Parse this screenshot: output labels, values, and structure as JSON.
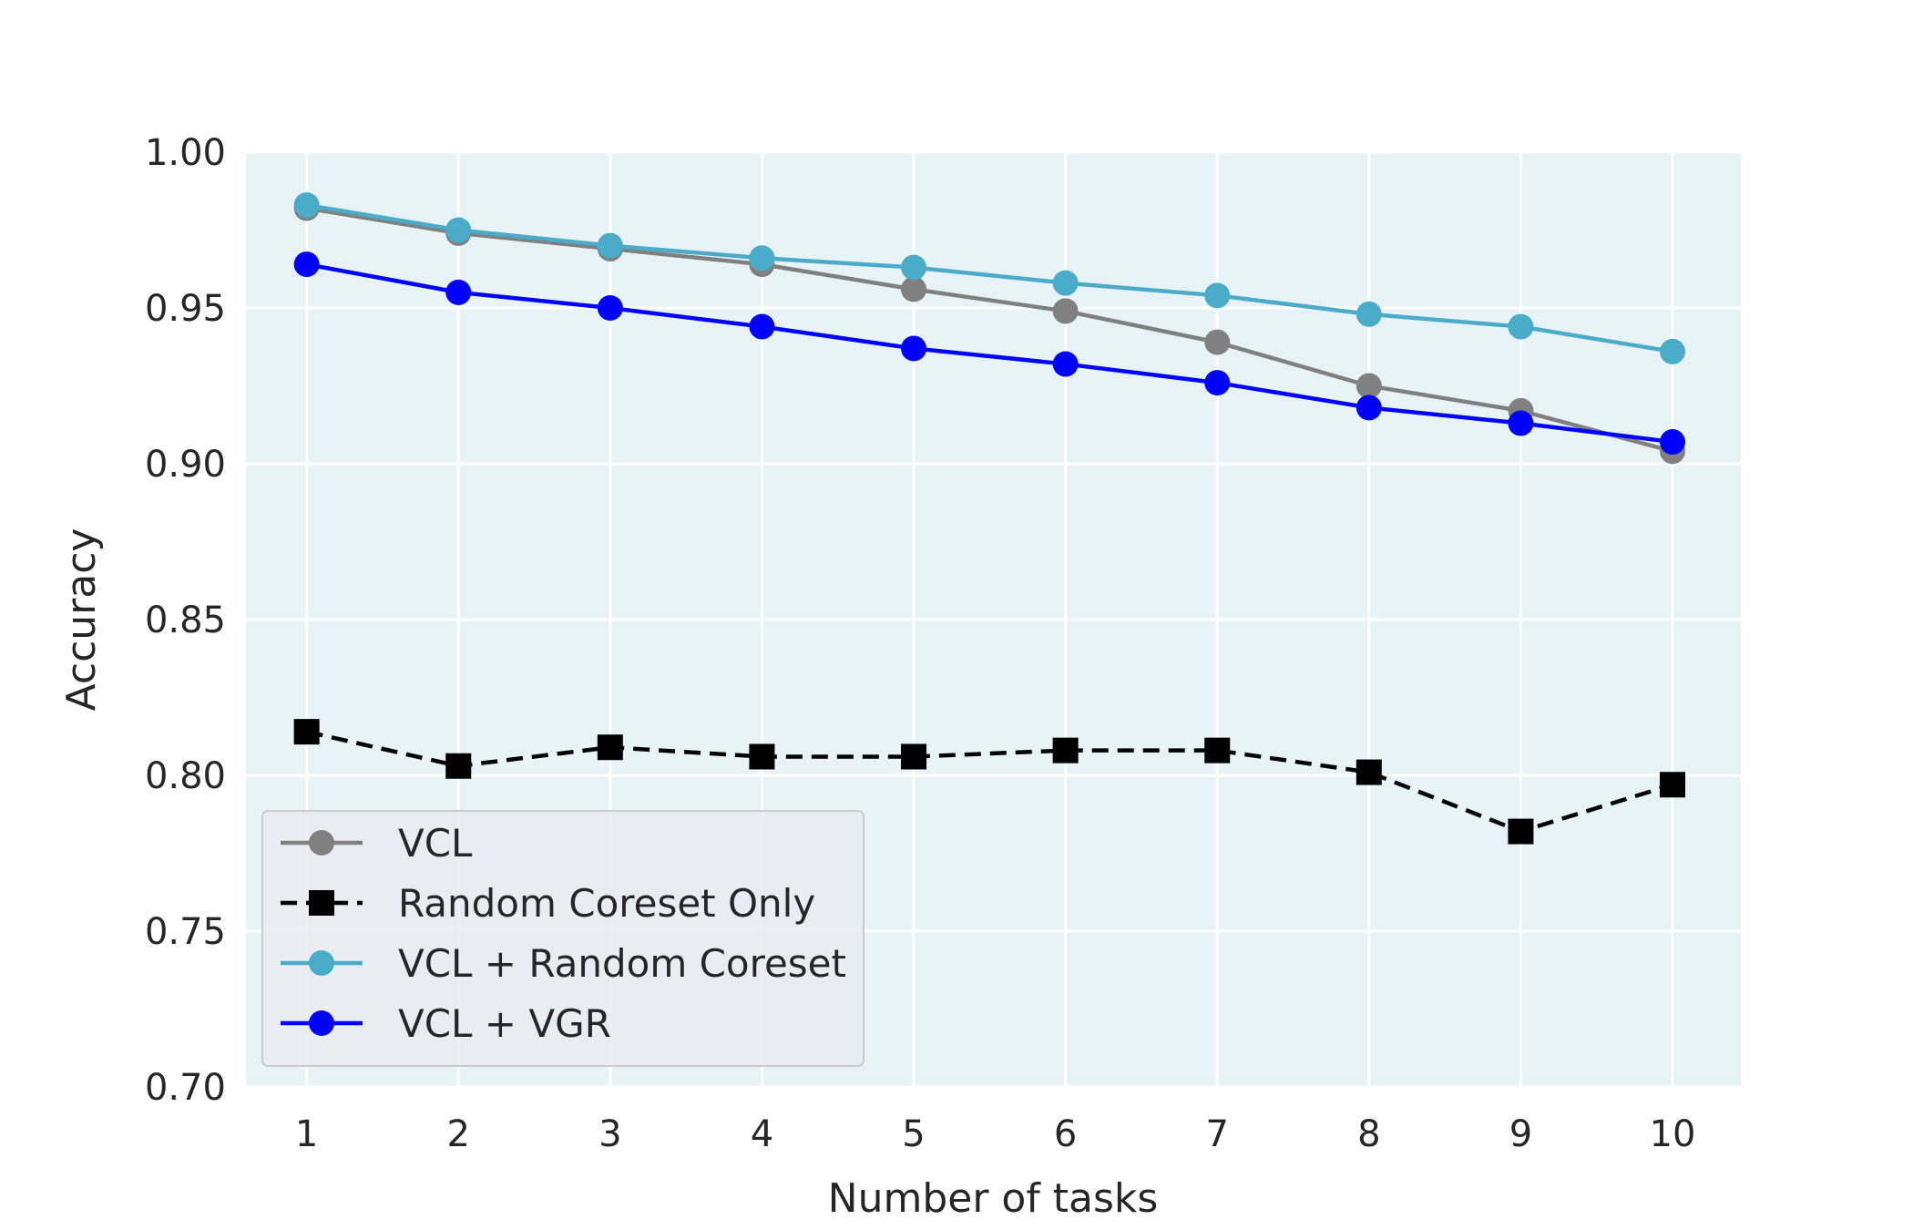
{
  "chart_data": {
    "type": "line",
    "title": "",
    "xlabel": "Number of tasks",
    "ylabel": "Accuracy",
    "x": [
      1,
      2,
      3,
      4,
      5,
      6,
      7,
      8,
      9,
      10
    ],
    "xlim": [
      0.6,
      10.45
    ],
    "ylim": [
      0.7,
      1.0
    ],
    "xticks": [
      1,
      2,
      3,
      4,
      5,
      6,
      7,
      8,
      9,
      10
    ],
    "yticks": [
      "0.70",
      "0.75",
      "0.80",
      "0.85",
      "0.90",
      "0.95",
      "1.00"
    ],
    "grid": true,
    "legend_position": "lower-left",
    "plot_background": "#e8f3f8",
    "series": [
      {
        "name": "VCL",
        "color": "#808080",
        "marker": "circle",
        "linestyle": "solid",
        "values": [
          0.982,
          0.974,
          0.969,
          0.964,
          0.956,
          0.949,
          0.939,
          0.925,
          0.917,
          0.904
        ]
      },
      {
        "name": "Random Coreset Only",
        "color": "#000000",
        "marker": "square",
        "linestyle": "dashed",
        "values": [
          0.814,
          0.803,
          0.809,
          0.806,
          0.806,
          0.808,
          0.808,
          0.801,
          0.782,
          0.797
        ]
      },
      {
        "name": "VCL + Random Coreset",
        "color": "#4aacc9",
        "marker": "circle",
        "linestyle": "solid",
        "values": [
          0.983,
          0.975,
          0.97,
          0.966,
          0.963,
          0.958,
          0.954,
          0.948,
          0.944,
          0.936
        ]
      },
      {
        "name": "VCL + VGR",
        "color": "#0000ff",
        "marker": "circle",
        "linestyle": "solid",
        "values": [
          0.964,
          0.955,
          0.95,
          0.944,
          0.937,
          0.932,
          0.926,
          0.918,
          0.913,
          0.907
        ]
      }
    ]
  }
}
